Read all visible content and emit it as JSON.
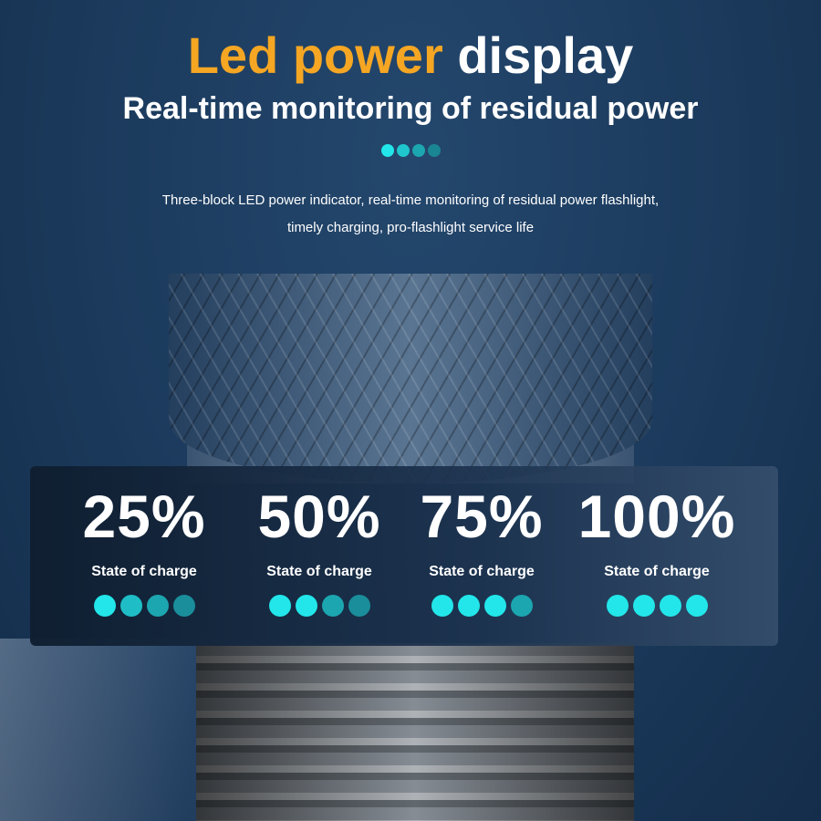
{
  "title": {
    "highlight": "Led power",
    "rest": "display"
  },
  "subtitle": "Real-time monitoring of residual power",
  "description": [
    "Three-block LED power indicator, real-time monitoring of residual power flashlight,",
    "timely charging, pro-flashlight service life"
  ],
  "colors": {
    "accent": "#f5a623",
    "led_on": "#22e6ea",
    "led_dim": "#1a8f96"
  },
  "header_dots": [
    1,
    0.8,
    0.6,
    0.4
  ],
  "levels": [
    {
      "percent": "25%",
      "label": "State of charge",
      "dots": [
        1,
        0.75,
        0.6,
        0.45
      ]
    },
    {
      "percent": "50%",
      "label": "State of charge",
      "dots": [
        1,
        1,
        0.6,
        0.45
      ]
    },
    {
      "percent": "75%",
      "label": "State of charge",
      "dots": [
        1,
        1,
        1,
        0.6
      ]
    },
    {
      "percent": "100%",
      "label": "State of charge",
      "dots": [
        1,
        1,
        1,
        1
      ]
    }
  ]
}
